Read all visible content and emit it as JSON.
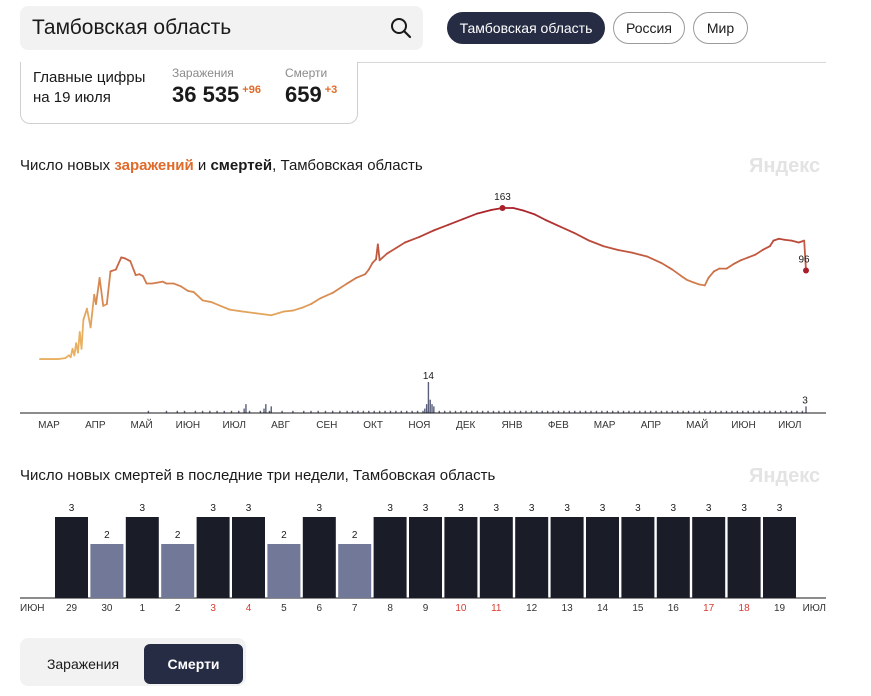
{
  "search": {
    "value": "Тамбовская область"
  },
  "region_buttons": [
    {
      "label": "Тамбовская область",
      "active": true
    },
    {
      "label": "Россия",
      "active": false
    },
    {
      "label": "Мир",
      "active": false
    }
  ],
  "summary": {
    "title_line1": "Главные цифры",
    "title_line2": "на 19 июля",
    "cases_label": "Заражения",
    "cases_value": "36 535",
    "cases_delta": "+96",
    "deaths_label": "Смерти",
    "deaths_value": "659",
    "deaths_delta": "+3"
  },
  "chart1_title": {
    "prefix": "Число новых ",
    "infections": "заражений",
    "middle": " и ",
    "deaths": "смертей",
    "suffix": ", Тамбовская область"
  },
  "chart2_title": "Число новых смертей в последние три недели, Тамбовская область",
  "watermark": "Яндекс",
  "tabs": [
    {
      "label": "Заражения",
      "active": false
    },
    {
      "label": "Смерти",
      "active": true
    }
  ],
  "colors": {
    "infections_low": "#e8b060",
    "infections_high": "#a8202a",
    "deaths_bar": "#5a5f7a",
    "bar_dark": "#1a1c28",
    "bar_light": "#727898",
    "weekend": "#d63b30",
    "accent_dark": "#262c44"
  },
  "chart_data": [
    {
      "type": "line",
      "title": "Число новых заражений и смертей, Тамбовская область",
      "x_months": [
        "МАР",
        "АПР",
        "МАЙ",
        "ИЮН",
        "ИЮЛ",
        "АВГ",
        "СЕН",
        "ОКТ",
        "НОЯ",
        "ДЕК",
        "ЯНВ",
        "ФЕВ",
        "МАР",
        "АПР",
        "МАЙ",
        "ИЮН",
        "ИЮЛ"
      ],
      "series": [
        {
          "name": "заражения",
          "points": [
            [
              0,
              1
            ],
            [
              10,
              1
            ],
            [
              14,
              2
            ],
            [
              16,
              5
            ],
            [
              17,
              3
            ],
            [
              18,
              12
            ],
            [
              19,
              5
            ],
            [
              20,
              18
            ],
            [
              21,
              8
            ],
            [
              22,
              30
            ],
            [
              23,
              12
            ],
            [
              24,
              43
            ],
            [
              26,
              55
            ],
            [
              28,
              35
            ],
            [
              30,
              70
            ],
            [
              31,
              60
            ],
            [
              33,
              88
            ],
            [
              35,
              58
            ],
            [
              37,
              60
            ],
            [
              39,
              95
            ],
            [
              42,
              97
            ],
            [
              45,
              110
            ],
            [
              47,
              109
            ],
            [
              50,
              106
            ],
            [
              53,
              91
            ],
            [
              55,
              92
            ],
            [
              57,
              90
            ],
            [
              59,
              82
            ],
            [
              62,
              82
            ],
            [
              65,
              83
            ],
            [
              68,
              84
            ],
            [
              70,
              82
            ],
            [
              74,
              82
            ],
            [
              78,
              79
            ],
            [
              82,
              74
            ],
            [
              85,
              73
            ],
            [
              90,
              64
            ],
            [
              95,
              62
            ],
            [
              100,
              58
            ],
            [
              105,
              54
            ],
            [
              112,
              52
            ],
            [
              120,
              50
            ],
            [
              128,
              48
            ],
            [
              135,
              52
            ],
            [
              140,
              53
            ],
            [
              145,
              56
            ],
            [
              150,
              60
            ],
            [
              155,
              66
            ],
            [
              162,
              72
            ],
            [
              170,
              82
            ],
            [
              175,
              88
            ],
            [
              180,
              92
            ],
            [
              182,
              97
            ],
            [
              184,
              104
            ],
            [
              186,
              108
            ],
            [
              187,
              124
            ],
            [
              188,
              107
            ],
            [
              192,
              114
            ],
            [
              197,
              120
            ],
            [
              202,
              126
            ],
            [
              210,
              132
            ],
            [
              218,
              139
            ],
            [
              226,
              145
            ],
            [
              234,
              151
            ],
            [
              242,
              157
            ],
            [
              250,
              161
            ],
            [
              256,
              163
            ],
            [
              262,
              163
            ],
            [
              268,
              160
            ],
            [
              274,
              156
            ],
            [
              280,
              150
            ],
            [
              288,
              143
            ],
            [
              296,
              136
            ],
            [
              304,
              128
            ],
            [
              312,
              122
            ],
            [
              320,
              118
            ],
            [
              328,
              115
            ],
            [
              336,
              111
            ],
            [
              344,
              104
            ],
            [
              350,
              97
            ],
            [
              355,
              90
            ],
            [
              358,
              86
            ],
            [
              362,
              83
            ],
            [
              365,
              81
            ],
            [
              368,
              80
            ],
            [
              370,
              88
            ],
            [
              373,
              95
            ],
            [
              376,
              98
            ],
            [
              380,
              98
            ],
            [
              384,
              103
            ],
            [
              388,
              107
            ],
            [
              392,
              110
            ],
            [
              396,
              113
            ],
            [
              400,
              118
            ],
            [
              404,
              122
            ],
            [
              406,
              128
            ],
            [
              409,
              130
            ],
            [
              412,
              129
            ],
            [
              416,
              128
            ],
            [
              420,
              126
            ],
            [
              423,
              128
            ],
            [
              424,
              96
            ]
          ]
        },
        {
          "name": "смерти",
          "points": [
            [
              60,
              1
            ],
            [
              70,
              1
            ],
            [
              76,
              1
            ],
            [
              80,
              1
            ],
            [
              86,
              1
            ],
            [
              90,
              1
            ],
            [
              94,
              1
            ],
            [
              98,
              1
            ],
            [
              102,
              1
            ],
            [
              106,
              1
            ],
            [
              110,
              1
            ],
            [
              116,
              1
            ],
            [
              122,
              1
            ],
            [
              128,
              1
            ],
            [
              134,
              1
            ],
            [
              140,
              1
            ],
            [
              146,
              1
            ],
            [
              150,
              1
            ],
            [
              154,
              1
            ],
            [
              158,
              1
            ],
            [
              162,
              1
            ],
            [
              166,
              1
            ],
            [
              170,
              1
            ],
            [
              173,
              1
            ],
            [
              176,
              1
            ],
            [
              179,
              1
            ],
            [
              182,
              1
            ],
            [
              185,
              1
            ],
            [
              188,
              1
            ],
            [
              191,
              1
            ],
            [
              194,
              1
            ],
            [
              197,
              1
            ],
            [
              200,
              1
            ],
            [
              203,
              1
            ],
            [
              206,
              1
            ],
            [
              209,
              1
            ],
            [
              212,
              1
            ],
            [
              215,
              1
            ],
            [
              218,
              1
            ],
            [
              221,
              1
            ],
            [
              224,
              1
            ],
            [
              227,
              1
            ],
            [
              230,
              1
            ],
            [
              233,
              1
            ],
            [
              236,
              1
            ],
            [
              239,
              1
            ],
            [
              242,
              1
            ],
            [
              245,
              1
            ],
            [
              248,
              1
            ],
            [
              251,
              1
            ],
            [
              254,
              1
            ],
            [
              257,
              1
            ],
            [
              260,
              1
            ],
            [
              263,
              1
            ],
            [
              266,
              1
            ],
            [
              269,
              1
            ],
            [
              272,
              1
            ],
            [
              275,
              1
            ],
            [
              278,
              1
            ],
            [
              281,
              1
            ],
            [
              284,
              1
            ],
            [
              287,
              1
            ],
            [
              290,
              1
            ],
            [
              293,
              1
            ],
            [
              296,
              1
            ],
            [
              299,
              1
            ],
            [
              302,
              1
            ],
            [
              305,
              1
            ],
            [
              308,
              1
            ],
            [
              311,
              1
            ],
            [
              314,
              1
            ],
            [
              317,
              1
            ],
            [
              320,
              1
            ],
            [
              323,
              1
            ],
            [
              326,
              1
            ],
            [
              329,
              1
            ],
            [
              332,
              1
            ],
            [
              335,
              1
            ],
            [
              338,
              1
            ],
            [
              341,
              1
            ],
            [
              344,
              1
            ],
            [
              347,
              1
            ],
            [
              350,
              1
            ],
            [
              353,
              1
            ],
            [
              356,
              1
            ],
            [
              359,
              1
            ],
            [
              362,
              1
            ],
            [
              365,
              1
            ],
            [
              368,
              1
            ],
            [
              371,
              1
            ],
            [
              374,
              1
            ],
            [
              377,
              1
            ],
            [
              380,
              1
            ],
            [
              383,
              1
            ],
            [
              386,
              1
            ],
            [
              389,
              1
            ],
            [
              392,
              1
            ],
            [
              395,
              1
            ],
            [
              398,
              1
            ],
            [
              401,
              1
            ],
            [
              404,
              1
            ],
            [
              407,
              1
            ],
            [
              410,
              1
            ],
            [
              413,
              1
            ],
            [
              416,
              1
            ],
            [
              419,
              1
            ],
            [
              422,
              1
            ],
            [
              424,
              3
            ]
          ]
        }
      ],
      "death_spikes": [
        [
          113,
          2
        ],
        [
          114,
          4
        ],
        [
          124,
          2
        ],
        [
          125,
          4
        ],
        [
          127,
          1
        ],
        [
          128,
          3
        ],
        [
          213,
          2
        ],
        [
          214,
          4
        ],
        [
          215,
          14
        ],
        [
          216,
          6
        ],
        [
          217,
          4
        ],
        [
          218,
          3
        ]
      ],
      "annotations": [
        {
          "label": "163",
          "x": 256,
          "y": 163
        },
        {
          "label": "96",
          "x": 424,
          "y": 96
        },
        {
          "label": "14",
          "x": 215,
          "y": 14
        },
        {
          "label": "3",
          "x": 424,
          "y": 3
        }
      ]
    },
    {
      "type": "bar",
      "title": "Число новых смертей в последние три недели, Тамбовская область",
      "edge_labels": [
        "ИЮН",
        "ИЮЛ"
      ],
      "categories": [
        "29",
        "30",
        "1",
        "2",
        "3",
        "4",
        "5",
        "6",
        "7",
        "8",
        "9",
        "10",
        "11",
        "12",
        "13",
        "14",
        "15",
        "16",
        "17",
        "18",
        "19"
      ],
      "values": [
        3,
        2,
        3,
        2,
        3,
        3,
        2,
        3,
        2,
        3,
        3,
        3,
        3,
        3,
        3,
        3,
        3,
        3,
        3,
        3,
        3
      ],
      "weekend": [
        false,
        false,
        false,
        false,
        true,
        true,
        false,
        false,
        false,
        false,
        false,
        true,
        true,
        false,
        false,
        false,
        false,
        false,
        true,
        true,
        false
      ],
      "ylim": [
        0,
        3
      ]
    }
  ]
}
